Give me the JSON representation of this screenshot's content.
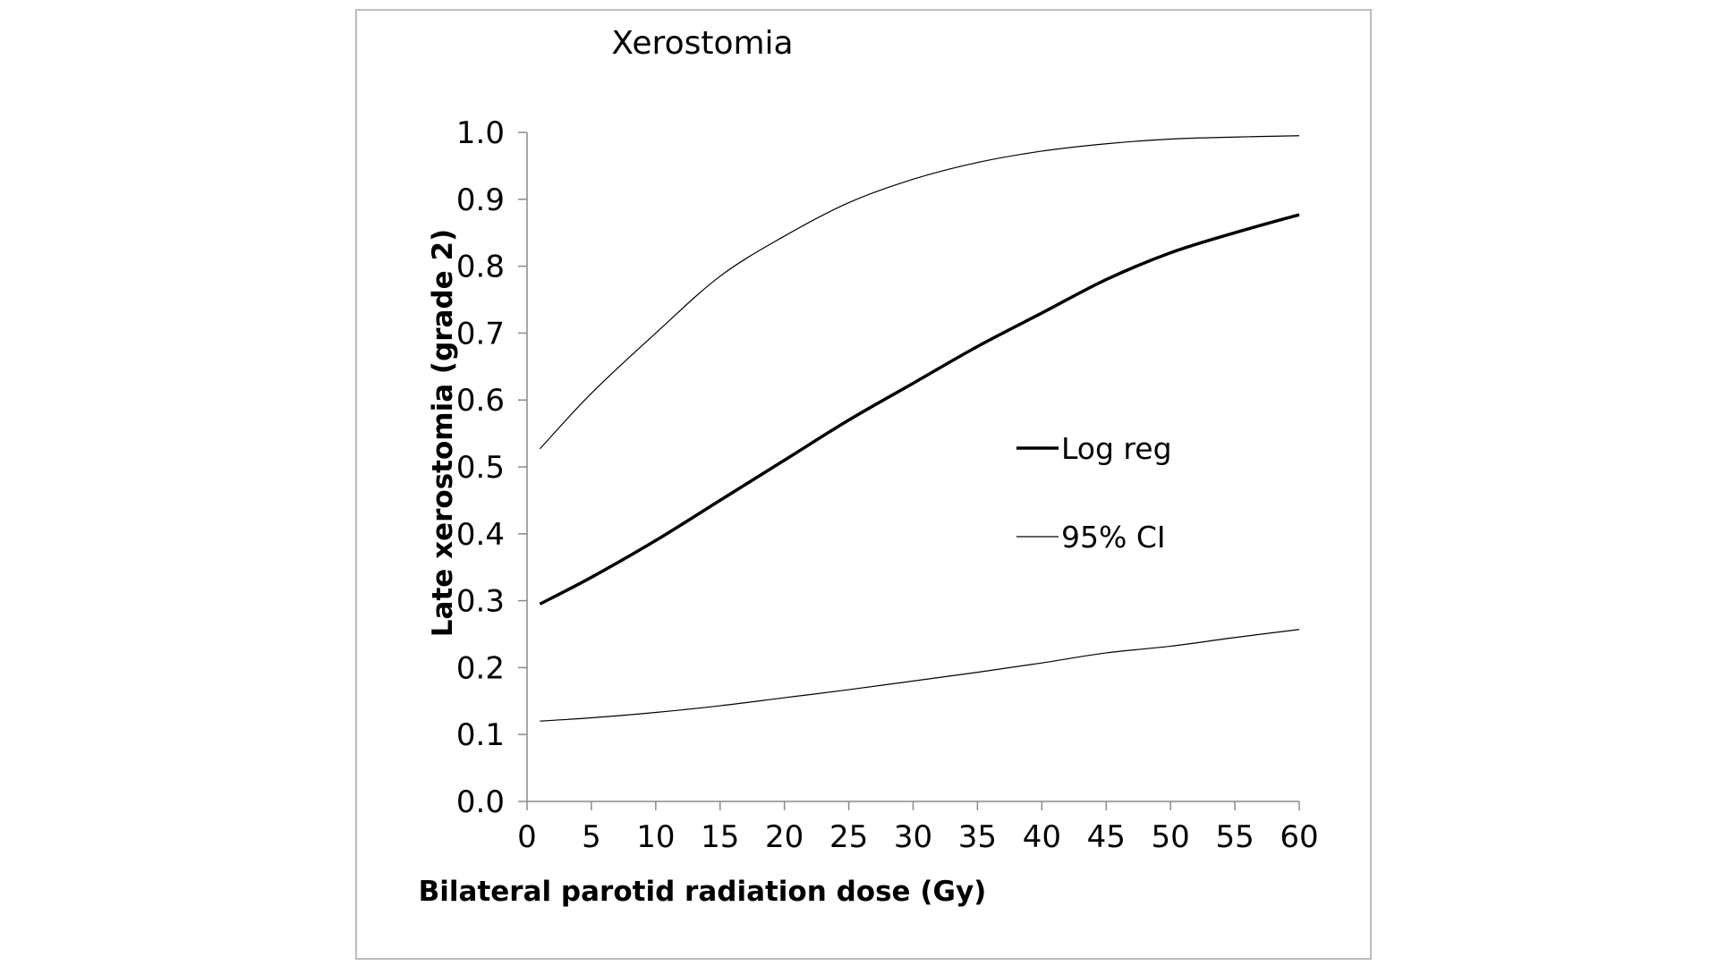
{
  "chart_data": {
    "type": "line",
    "title": "Xerostomia",
    "xlabel": "Bilateral parotid radiation dose (Gy)",
    "ylabel": "Late xerostomia (grade 2)",
    "xlim": [
      0,
      60
    ],
    "ylim": [
      0,
      1.0
    ],
    "xticks": [
      "0",
      "5",
      "10",
      "15",
      "20",
      "25",
      "30",
      "35",
      "40",
      "45",
      "50",
      "55",
      "60"
    ],
    "yticks": [
      "0.0",
      "0.1",
      "0.2",
      "0.3",
      "0.4",
      "0.5",
      "0.6",
      "0.7",
      "0.8",
      "0.9",
      "1.0"
    ],
    "grid": false,
    "legend_position": "right-middle",
    "x": [
      1,
      5,
      10,
      15,
      20,
      25,
      30,
      35,
      40,
      45,
      50,
      55,
      60
    ],
    "series": [
      {
        "name": "Log reg",
        "style": "thick",
        "color": "#000000",
        "values": [
          0.295,
          0.335,
          0.39,
          0.45,
          0.51,
          0.57,
          0.625,
          0.68,
          0.73,
          0.78,
          0.82,
          0.85,
          0.877
        ]
      },
      {
        "name": "95% CI",
        "style": "thin",
        "color": "#000000",
        "values": [
          0.527,
          0.61,
          0.7,
          0.785,
          0.845,
          0.895,
          0.93,
          0.955,
          0.972,
          0.983,
          0.99,
          0.993,
          0.995
        ]
      },
      {
        "name": "",
        "style": "thin",
        "color": "#000000",
        "values": [
          0.12,
          0.125,
          0.133,
          0.143,
          0.155,
          0.167,
          0.18,
          0.193,
          0.207,
          0.222,
          0.232,
          0.245,
          0.257
        ]
      }
    ]
  }
}
